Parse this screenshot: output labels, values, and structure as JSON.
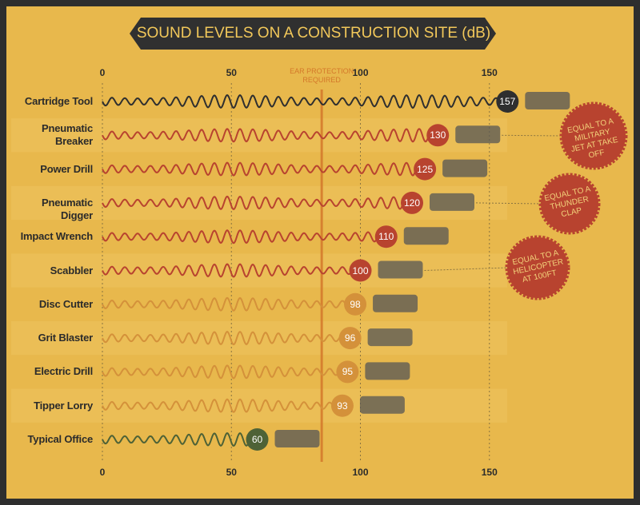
{
  "chart_data": {
    "type": "wave",
    "title": "SOUND LEVELS ON A CONSTRUCTION SITE (dB)",
    "categories": [
      "Cartridge Tool",
      "Pneumatic Breaker",
      "Power Drill",
      "Pneumatic Digger",
      "Impact Wrench",
      "Scabbler",
      "Disc Cutter",
      "Grit Blaster",
      "Electric Drill",
      "Tipper Lorry",
      "Typical Office"
    ],
    "values": [
      157,
      130,
      125,
      120,
      110,
      100,
      98,
      96,
      95,
      93,
      60
    ],
    "colors": [
      "#2f2f2f",
      "#b8432f",
      "#b8432f",
      "#b8432f",
      "#b8432f",
      "#b8432f",
      "#d4913a",
      "#d4913a",
      "#d4913a",
      "#d4913a",
      "#4e6236"
    ],
    "xlim": [
      0,
      160
    ],
    "xticks": [
      0,
      50,
      100,
      150
    ],
    "threshold": {
      "value": 85,
      "label": "EAR PROTECTION REQUIRED",
      "color": "#d4782a"
    },
    "callouts": [
      {
        "text": "EQUAL TO A MILITARY JET AT TAKE OFF",
        "category": "Pneumatic Breaker"
      },
      {
        "text": "EQUAL TO A THUNDER CLAP",
        "category": "Pneumatic Digger"
      },
      {
        "text": "EQUAL TO A HELICOPTER AT 100FT",
        "category": "Scabbler"
      }
    ],
    "grid": true
  }
}
